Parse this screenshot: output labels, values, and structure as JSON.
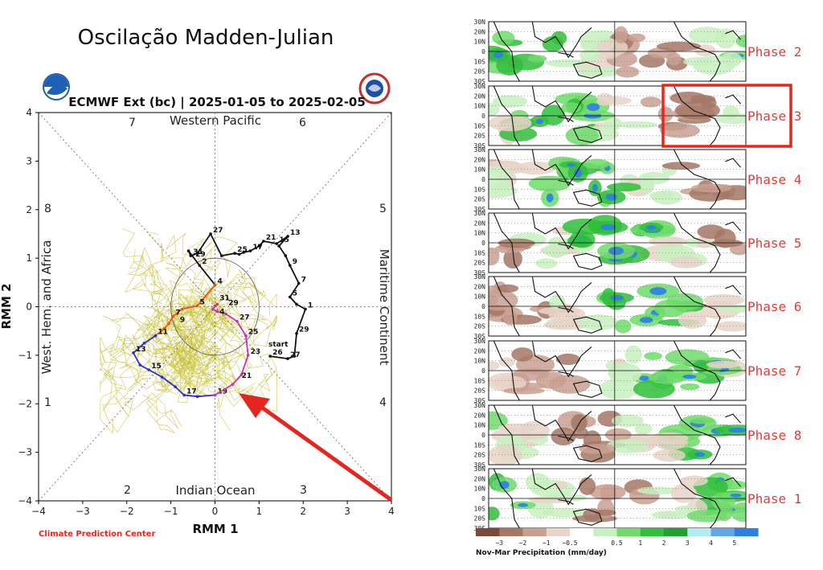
{
  "page_title": "Oscilação Madden-Julian",
  "icons": {
    "noaa": "noaa-logo-icon",
    "nws": "nws-logo-icon"
  },
  "chart_data": [
    {
      "type": "line",
      "subtitle": "ECMWF Ext (bc) | 2025-01-05 to 2025-02-05",
      "xlabel": "RMM 1",
      "ylabel": "RMM 2",
      "xlim": [
        -4,
        4
      ],
      "ylim": [
        -4,
        4
      ],
      "x_ticks": [
        "−4",
        "−3",
        "−2",
        "−1",
        "0",
        "1",
        "2",
        "3",
        "4"
      ],
      "y_ticks": [
        "−4",
        "−3",
        "−2",
        "−1",
        "0",
        "1",
        "2",
        "3",
        "4"
      ],
      "regions": {
        "top": "Western Pacific",
        "bottom": "Indian Ocean",
        "left": "West. Hem. and Africa",
        "right": "Maritime Continent"
      },
      "phase_numbers": [
        "1",
        "2",
        "3",
        "4",
        "5",
        "6",
        "7",
        "8"
      ],
      "credit": "Climate Prediction Center",
      "start_label": "start",
      "colors": {
        "observed": "#111111",
        "forecast_1": "#e8541c",
        "forecast_2": "#2c2ccc",
        "forecast_3": "#cc33aa",
        "ensemble": "#c8c23a",
        "annotation_arrow": "#e52620"
      },
      "series": [
        {
          "points": [
            [
              1.25,
              -1.02
            ],
            [
              1.65,
              -1.07
            ],
            [
              1.8,
              -1.02
            ],
            [
              1.85,
              -0.55
            ],
            [
              2.05,
              -0.05
            ],
            [
              1.85,
              0.05
            ],
            [
              1.7,
              0.2
            ],
            [
              1.9,
              0.48
            ],
            [
              1.7,
              0.85
            ],
            [
              1.6,
              1.05
            ],
            [
              1.45,
              1.25
            ],
            [
              1.65,
              1.45
            ],
            [
              1.4,
              1.3
            ],
            [
              1.1,
              1.35
            ],
            [
              1.0,
              1.25
            ],
            [
              0.8,
              1.15
            ],
            [
              0.65,
              1.12
            ],
            [
              0.55,
              1.08
            ],
            [
              0.45,
              1.1
            ],
            [
              0.15,
              1.05
            ],
            [
              -0.1,
              1.5
            ],
            [
              -0.4,
              1.1
            ],
            [
              -0.55,
              1.05
            ],
            [
              -0.6,
              1.15
            ],
            [
              -0.35,
              0.85
            ],
            [
              0.0,
              0.45
            ]
          ],
          "point_labels": [
            [
              "26",
              1.25,
              -1.02
            ],
            [
              "27",
              1.65,
              -1.07
            ],
            [
              "29",
              1.85,
              -0.55
            ],
            [
              "1",
              2.05,
              -0.05
            ],
            [
              "5",
              1.7,
              0.2
            ],
            [
              "7",
              1.9,
              0.48
            ],
            [
              "9",
              1.7,
              0.85
            ],
            [
              "13",
              1.65,
              1.45
            ],
            [
              "15",
              1.4,
              1.3
            ],
            [
              "21",
              1.1,
              1.35
            ],
            [
              "17",
              0.8,
              1.15
            ],
            [
              "25",
              0.45,
              1.1
            ],
            [
              "27",
              -0.1,
              1.5
            ],
            [
              "31",
              -0.55,
              1.05
            ],
            [
              "29",
              -0.5,
              1.0
            ],
            [
              "2",
              -0.35,
              0.85
            ],
            [
              "4",
              0.0,
              0.45
            ]
          ]
        },
        {
          "points": [
            [
              0.0,
              0.45
            ],
            [
              -0.4,
              0.02
            ],
            [
              -0.75,
              -0.05
            ],
            [
              -0.95,
              -0.2
            ],
            [
              -1.05,
              -0.35
            ],
            [
              -1.15,
              -0.45
            ],
            [
              -1.35,
              -0.6
            ]
          ],
          "point_labels": [
            [
              "5",
              -0.4,
              0.02
            ],
            [
              "7",
              -0.95,
              -0.2
            ],
            [
              "9",
              -0.85,
              -0.35
            ]
          ]
        },
        {
          "points": [
            [
              -1.35,
              -0.6
            ],
            [
              -1.6,
              -0.75
            ],
            [
              -1.85,
              -0.95
            ],
            [
              -1.7,
              -1.2
            ],
            [
              -1.5,
              -1.3
            ],
            [
              -1.2,
              -1.45
            ],
            [
              -0.9,
              -1.65
            ],
            [
              -0.7,
              -1.82
            ],
            [
              -0.4,
              -1.85
            ],
            [
              0.0,
              -1.82
            ]
          ],
          "point_labels": [
            [
              "11",
              -1.35,
              -0.6
            ],
            [
              "13",
              -1.85,
              -0.95
            ],
            [
              "15",
              -1.5,
              -1.3
            ],
            [
              "17",
              -0.7,
              -1.82
            ],
            [
              "19",
              0.0,
              -1.82
            ]
          ]
        },
        {
          "points": [
            [
              0.0,
              -1.82
            ],
            [
              0.4,
              -1.6
            ],
            [
              0.6,
              -1.4
            ],
            [
              0.75,
              -1.0
            ],
            [
              0.7,
              -0.6
            ],
            [
              0.5,
              -0.3
            ],
            [
              0.25,
              -0.15
            ],
            [
              0.05,
              -0.1
            ],
            [
              -0.05,
              -0.05
            ],
            [
              0.0,
              0.02
            ],
            [
              0.05,
              0.05
            ]
          ],
          "point_labels": [
            [
              "21",
              0.55,
              -1.5
            ],
            [
              "23",
              0.75,
              -1.0
            ],
            [
              "25",
              0.7,
              -0.6
            ],
            [
              "27",
              0.5,
              -0.3
            ],
            [
              "29",
              0.25,
              0.0
            ],
            [
              "31",
              0.05,
              0.1
            ],
            [
              "4",
              0.05,
              -0.18
            ]
          ]
        }
      ]
    },
    {
      "type": "heatmap",
      "panels": [
        "Phase 2",
        "Phase 3",
        "Phase 4",
        "Phase 5",
        "Phase 6",
        "Phase 7",
        "Phase 8",
        "Phase 1"
      ],
      "highlighted_panel": "Phase 3",
      "lat_labels": [
        "30N",
        "20N",
        "10N",
        "0",
        "10S",
        "20S",
        "30S"
      ],
      "colorbar_label": "Nov-Mar Precipitation (mm/day)",
      "colorbar_ticks": [
        "−3",
        "−2",
        "−1",
        "−0.5",
        "0.5",
        "1",
        "2",
        "3",
        "4",
        "5"
      ],
      "colorbar_colors": [
        "#7b4a3a",
        "#a67766",
        "#c9a090",
        "#e8d4c8",
        "#ffffff",
        "#c8f0c0",
        "#6fdc6a",
        "#2fc03a",
        "#22a030",
        "#b4ecf4",
        "#60a8e8",
        "#2b7fe6"
      ]
    }
  ]
}
